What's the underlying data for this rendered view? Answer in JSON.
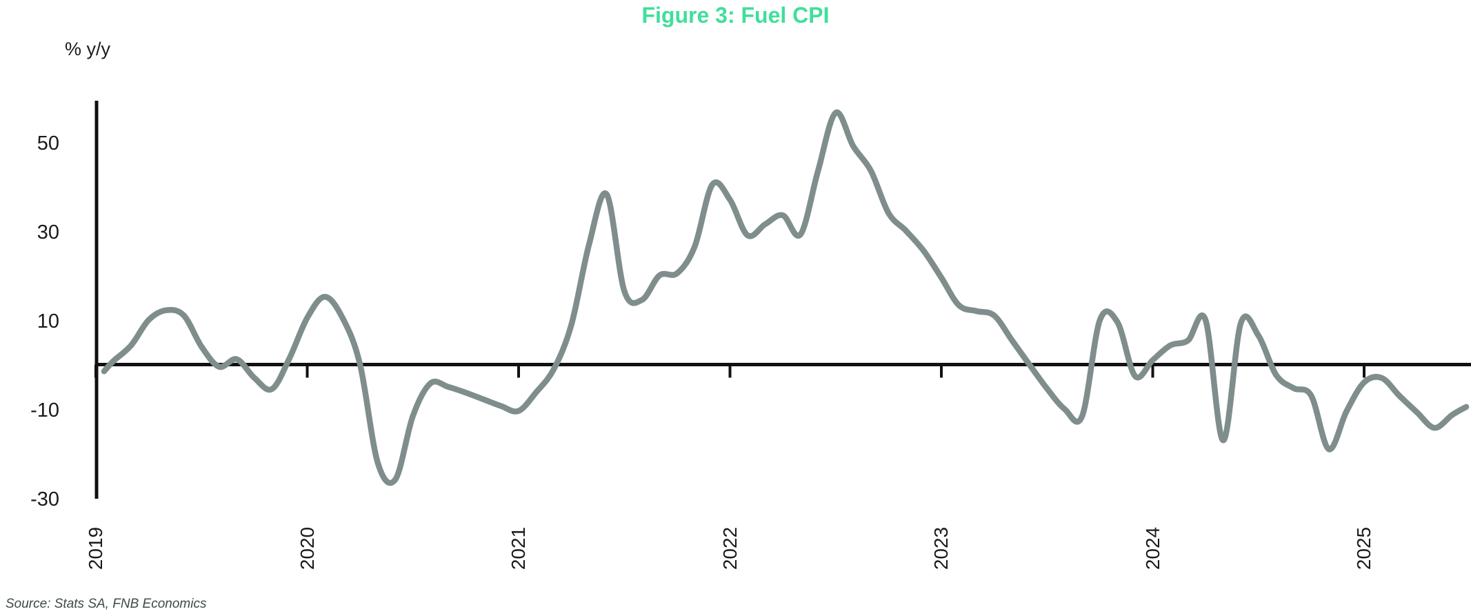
{
  "title": "Figure 3: Fuel CPI",
  "y_axis_unit_label": "% y/y",
  "source_note": "Source: Stats SA, FNB Economics",
  "colors": {
    "title": "#3fdf9a",
    "line": "#7f8e8c",
    "axis": "#111111",
    "text": "#1a1a1a",
    "source_text": "#3e4a48"
  },
  "chart_data": {
    "type": "line",
    "title": "Figure 3: Fuel CPI",
    "ylabel": "% y/y",
    "grid": false,
    "legend": "none",
    "x_tick_labels": [
      "2019",
      "2020",
      "2021",
      "2022",
      "2023",
      "2024",
      "2025"
    ],
    "y_ticks": [
      50,
      30,
      10,
      -10,
      -30
    ],
    "ylim": [
      -30,
      60
    ],
    "series": [
      {
        "name": "Fuel CPI",
        "unit": "% y/y",
        "frequency": "monthly",
        "start": "2019-01",
        "end": "2025-07",
        "values": [
          -1.5,
          0.8,
          4.3,
          10.0,
          12.2,
          11.0,
          4.0,
          -0.5,
          1.2,
          -3.0,
          -5.5,
          1.5,
          10.5,
          15.2,
          10.5,
          0.0,
          -22.0,
          -25.8,
          -11.5,
          -4.2,
          -5.0,
          -6.3,
          -7.8,
          -9.3,
          -10.4,
          -6.2,
          -1.0,
          9.0,
          27.0,
          38.2,
          16.5,
          14.5,
          20.0,
          20.5,
          26.5,
          40.4,
          37.0,
          29.0,
          31.5,
          33.5,
          29.2,
          43.5,
          56.5,
          49.0,
          43.5,
          34.0,
          30.0,
          25.5,
          19.5,
          13.3,
          12.0,
          11.0,
          5.5,
          0.0,
          -5.4,
          -10.0,
          -11.5,
          10.0,
          9.5,
          -2.6,
          1.0,
          4.3,
          5.4,
          10.0,
          -17.0,
          9.3,
          6.5,
          -2.3,
          -5.3,
          -7.0,
          -19.0,
          -10.5,
          -4.0,
          -3.0,
          -7.0,
          -10.7,
          -14.2,
          -11.3,
          -9.5
        ]
      }
    ]
  }
}
